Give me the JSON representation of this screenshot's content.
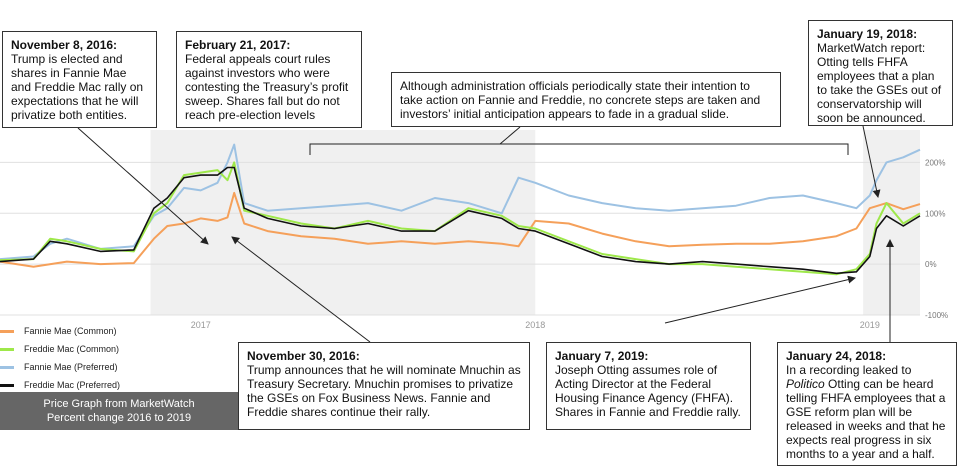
{
  "chart_data": {
    "type": "line",
    "title": "",
    "xlabel": "",
    "ylabel": "",
    "xlim": [
      2016.4,
      2019.15
    ],
    "ylim": [
      -100,
      250
    ],
    "y_ticks": [
      {
        "value": 200,
        "label": "200%"
      },
      {
        "value": 100,
        "label": "100%"
      },
      {
        "value": 0,
        "label": "0%"
      },
      {
        "value": -100,
        "label": "-100%"
      }
    ],
    "x_ticks": [
      {
        "value": 2017.0,
        "label": "2017"
      },
      {
        "value": 2018.0,
        "label": "2018"
      },
      {
        "value": 2019.0,
        "label": "2019"
      }
    ],
    "shaded_ranges": [
      [
        2016.85,
        2018.0
      ],
      [
        2018.98,
        2019.15
      ]
    ],
    "grid": true,
    "legend_position": "bottom-left",
    "series": [
      {
        "name": "Fannie Mae (Common)",
        "color": "#f5a05a",
        "points": [
          [
            2016.4,
            5
          ],
          [
            2016.5,
            -5
          ],
          [
            2016.6,
            5
          ],
          [
            2016.7,
            0
          ],
          [
            2016.8,
            2
          ],
          [
            2016.86,
            50
          ],
          [
            2016.9,
            75
          ],
          [
            2016.95,
            80
          ],
          [
            2017.0,
            90
          ],
          [
            2017.05,
            85
          ],
          [
            2017.08,
            92
          ],
          [
            2017.1,
            140
          ],
          [
            2017.13,
            80
          ],
          [
            2017.2,
            65
          ],
          [
            2017.3,
            55
          ],
          [
            2017.4,
            50
          ],
          [
            2017.5,
            40
          ],
          [
            2017.6,
            45
          ],
          [
            2017.7,
            40
          ],
          [
            2017.8,
            45
          ],
          [
            2017.9,
            40
          ],
          [
            2017.95,
            35
          ],
          [
            2018.0,
            85
          ],
          [
            2018.1,
            80
          ],
          [
            2018.2,
            60
          ],
          [
            2018.3,
            45
          ],
          [
            2018.4,
            35
          ],
          [
            2018.5,
            38
          ],
          [
            2018.6,
            40
          ],
          [
            2018.7,
            40
          ],
          [
            2018.8,
            45
          ],
          [
            2018.9,
            55
          ],
          [
            2018.96,
            70
          ],
          [
            2019.0,
            110
          ],
          [
            2019.05,
            120
          ],
          [
            2019.1,
            108
          ],
          [
            2019.15,
            118
          ]
        ]
      },
      {
        "name": "Freddie Mac (Common)",
        "color": "#9ee84a",
        "points": [
          [
            2016.4,
            8
          ],
          [
            2016.5,
            10
          ],
          [
            2016.55,
            50
          ],
          [
            2016.6,
            45
          ],
          [
            2016.7,
            30
          ],
          [
            2016.8,
            25
          ],
          [
            2016.86,
            100
          ],
          [
            2016.9,
            120
          ],
          [
            2016.95,
            175
          ],
          [
            2017.0,
            180
          ],
          [
            2017.05,
            185
          ],
          [
            2017.08,
            165
          ],
          [
            2017.1,
            200
          ],
          [
            2017.13,
            105
          ],
          [
            2017.2,
            95
          ],
          [
            2017.3,
            80
          ],
          [
            2017.4,
            70
          ],
          [
            2017.5,
            85
          ],
          [
            2017.6,
            70
          ],
          [
            2017.7,
            65
          ],
          [
            2017.8,
            110
          ],
          [
            2017.9,
            95
          ],
          [
            2017.95,
            75
          ],
          [
            2018.0,
            70
          ],
          [
            2018.1,
            45
          ],
          [
            2018.2,
            20
          ],
          [
            2018.3,
            10
          ],
          [
            2018.4,
            0
          ],
          [
            2018.5,
            0
          ],
          [
            2018.6,
            -5
          ],
          [
            2018.7,
            -10
          ],
          [
            2018.8,
            -15
          ],
          [
            2018.9,
            -20
          ],
          [
            2018.96,
            -10
          ],
          [
            2019.0,
            20
          ],
          [
            2019.02,
            80
          ],
          [
            2019.05,
            120
          ],
          [
            2019.1,
            80
          ],
          [
            2019.15,
            100
          ]
        ]
      },
      {
        "name": "Fannie Mae (Preferred)",
        "color": "#9dc2e3",
        "points": [
          [
            2016.4,
            10
          ],
          [
            2016.5,
            15
          ],
          [
            2016.55,
            40
          ],
          [
            2016.6,
            50
          ],
          [
            2016.7,
            30
          ],
          [
            2016.8,
            35
          ],
          [
            2016.86,
            95
          ],
          [
            2016.9,
            110
          ],
          [
            2016.95,
            150
          ],
          [
            2017.0,
            145
          ],
          [
            2017.05,
            160
          ],
          [
            2017.08,
            200
          ],
          [
            2017.1,
            235
          ],
          [
            2017.13,
            120
          ],
          [
            2017.2,
            105
          ],
          [
            2017.3,
            110
          ],
          [
            2017.4,
            115
          ],
          [
            2017.5,
            120
          ],
          [
            2017.6,
            105
          ],
          [
            2017.7,
            130
          ],
          [
            2017.8,
            120
          ],
          [
            2017.9,
            100
          ],
          [
            2017.95,
            170
          ],
          [
            2018.0,
            160
          ],
          [
            2018.1,
            135
          ],
          [
            2018.2,
            120
          ],
          [
            2018.3,
            110
          ],
          [
            2018.4,
            105
          ],
          [
            2018.5,
            110
          ],
          [
            2018.6,
            115
          ],
          [
            2018.7,
            130
          ],
          [
            2018.8,
            135
          ],
          [
            2018.9,
            120
          ],
          [
            2018.96,
            110
          ],
          [
            2019.0,
            135
          ],
          [
            2019.02,
            165
          ],
          [
            2019.05,
            200
          ],
          [
            2019.1,
            210
          ],
          [
            2019.15,
            225
          ]
        ]
      },
      {
        "name": "Freddie Mac (Preferred)",
        "color": "#111111",
        "points": [
          [
            2016.4,
            5
          ],
          [
            2016.5,
            10
          ],
          [
            2016.55,
            45
          ],
          [
            2016.6,
            40
          ],
          [
            2016.7,
            25
          ],
          [
            2016.8,
            28
          ],
          [
            2016.86,
            110
          ],
          [
            2016.9,
            130
          ],
          [
            2016.95,
            170
          ],
          [
            2017.0,
            175
          ],
          [
            2017.05,
            175
          ],
          [
            2017.08,
            190
          ],
          [
            2017.1,
            190
          ],
          [
            2017.13,
            110
          ],
          [
            2017.2,
            90
          ],
          [
            2017.3,
            75
          ],
          [
            2017.4,
            70
          ],
          [
            2017.5,
            80
          ],
          [
            2017.6,
            65
          ],
          [
            2017.7,
            65
          ],
          [
            2017.8,
            105
          ],
          [
            2017.9,
            90
          ],
          [
            2017.95,
            70
          ],
          [
            2018.0,
            65
          ],
          [
            2018.1,
            40
          ],
          [
            2018.2,
            15
          ],
          [
            2018.3,
            5
          ],
          [
            2018.4,
            0
          ],
          [
            2018.5,
            5
          ],
          [
            2018.6,
            0
          ],
          [
            2018.7,
            -5
          ],
          [
            2018.8,
            -10
          ],
          [
            2018.9,
            -18
          ],
          [
            2018.96,
            -15
          ],
          [
            2019.0,
            15
          ],
          [
            2019.02,
            70
          ],
          [
            2019.05,
            95
          ],
          [
            2019.1,
            75
          ],
          [
            2019.15,
            95
          ]
        ]
      }
    ]
  },
  "annotations": [
    {
      "id": "nov-8-2016",
      "date": "November 8, 2016:",
      "text": "Trump is elected and shares in Fannie Mae and Freddie Mac rally on expectations that he will privatize both entities."
    },
    {
      "id": "feb-21-2017",
      "date": "February 21, 2017:",
      "text": "Federal appeals court rules against investors who were contesting the Treasury’s profit sweep. Shares fall but do not reach pre-election levels"
    },
    {
      "id": "decline",
      "date": "",
      "text": "Although administration officials periodically state their intention to take action on Fannie and Freddie, no concrete steps are taken and investors’ initial anticipation appears to fade in a gradual slide."
    },
    {
      "id": "jan-19-2018",
      "date": "January 19, 2018:",
      "text": "MarketWatch report: Otting tells FHFA employees that a plan to take the GSEs out of conservatorship  will soon be announced."
    },
    {
      "id": "nov-30-2016",
      "date": "November 30, 2016:",
      "text": "Trump announces that he will nominate Mnuchin as Treasury Secretary. Mnuchin promises to privatize the GSEs on Fox Business News. Fannie and Freddie shares continue their rally."
    },
    {
      "id": "jan-7-2019",
      "date": "January 7, 2019:",
      "text": "Joseph Otting assumes role of Acting Director at the Federal Housing Finance Agency (FHFA). Shares in Fannie and Freddie rally."
    },
    {
      "id": "jan-24-2018",
      "date": "January 24, 2018:",
      "text_before": "In a recording  leaked to ",
      "text_italic": "Politico",
      "text_after": " Otting can be heard telling FHFA employees that a GSE reform plan will be released in weeks and that he expects real progress in six months to a year and a half."
    }
  ],
  "source": {
    "line1": "Price Graph from MarketWatch",
    "line2": "Percent change 2016 to 2019"
  },
  "colors": {
    "fannie_common": "#f5a05a",
    "freddie_common": "#9ee84a",
    "fannie_preferred": "#9dc2e3",
    "freddie_preferred": "#111111",
    "shade": "#f0f0f0",
    "gridline": "#e0e0e0"
  }
}
